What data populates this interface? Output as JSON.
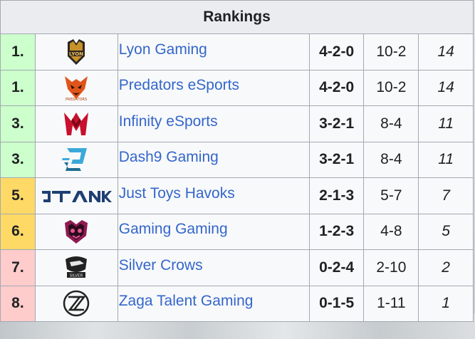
{
  "title": "Rankings",
  "colors": {
    "first": "#ccffcc",
    "third": "#ccffcc",
    "fifth": "#ffd966",
    "seventh": "#ffcccc",
    "link": "#3366cc"
  },
  "rows": [
    {
      "position": "1.",
      "logo": "lyon-gaming-logo",
      "team": "Lyon Gaming",
      "series": "4-2-0",
      "games": "10-2",
      "points": "14",
      "bg": "#ccffcc"
    },
    {
      "position": "1.",
      "logo": "predators-esports-logo",
      "team": "Predators eSports",
      "series": "4-2-0",
      "games": "10-2",
      "points": "14",
      "bg": "#ccffcc"
    },
    {
      "position": "3.",
      "logo": "infinity-esports-logo",
      "team": "Infinity eSports",
      "series": "3-2-1",
      "games": "8-4",
      "points": "11",
      "bg": "#ccffcc"
    },
    {
      "position": "3.",
      "logo": "dash9-gaming-logo",
      "team": "Dash9 Gaming",
      "series": "3-2-1",
      "games": "8-4",
      "points": "11",
      "bg": "#ccffcc"
    },
    {
      "position": "5.",
      "logo": "just-toys-havoks-logo",
      "team": "Just Toys Havoks",
      "series": "2-1-3",
      "games": "5-7",
      "points": "7",
      "bg": "#ffd966"
    },
    {
      "position": "6.",
      "logo": "gaming-gaming-logo",
      "team": "Gaming Gaming",
      "series": "1-2-3",
      "games": "4-8",
      "points": "5",
      "bg": "#ffd966"
    },
    {
      "position": "7.",
      "logo": "silver-crows-logo",
      "team": "Silver Crows",
      "series": "0-2-4",
      "games": "2-10",
      "points": "2",
      "bg": "#ffcccc"
    },
    {
      "position": "8.",
      "logo": "zaga-talent-gaming-logo",
      "team": "Zaga Talent Gaming",
      "series": "0-1-5",
      "games": "1-11",
      "points": "1",
      "bg": "#ffcccc"
    }
  ]
}
